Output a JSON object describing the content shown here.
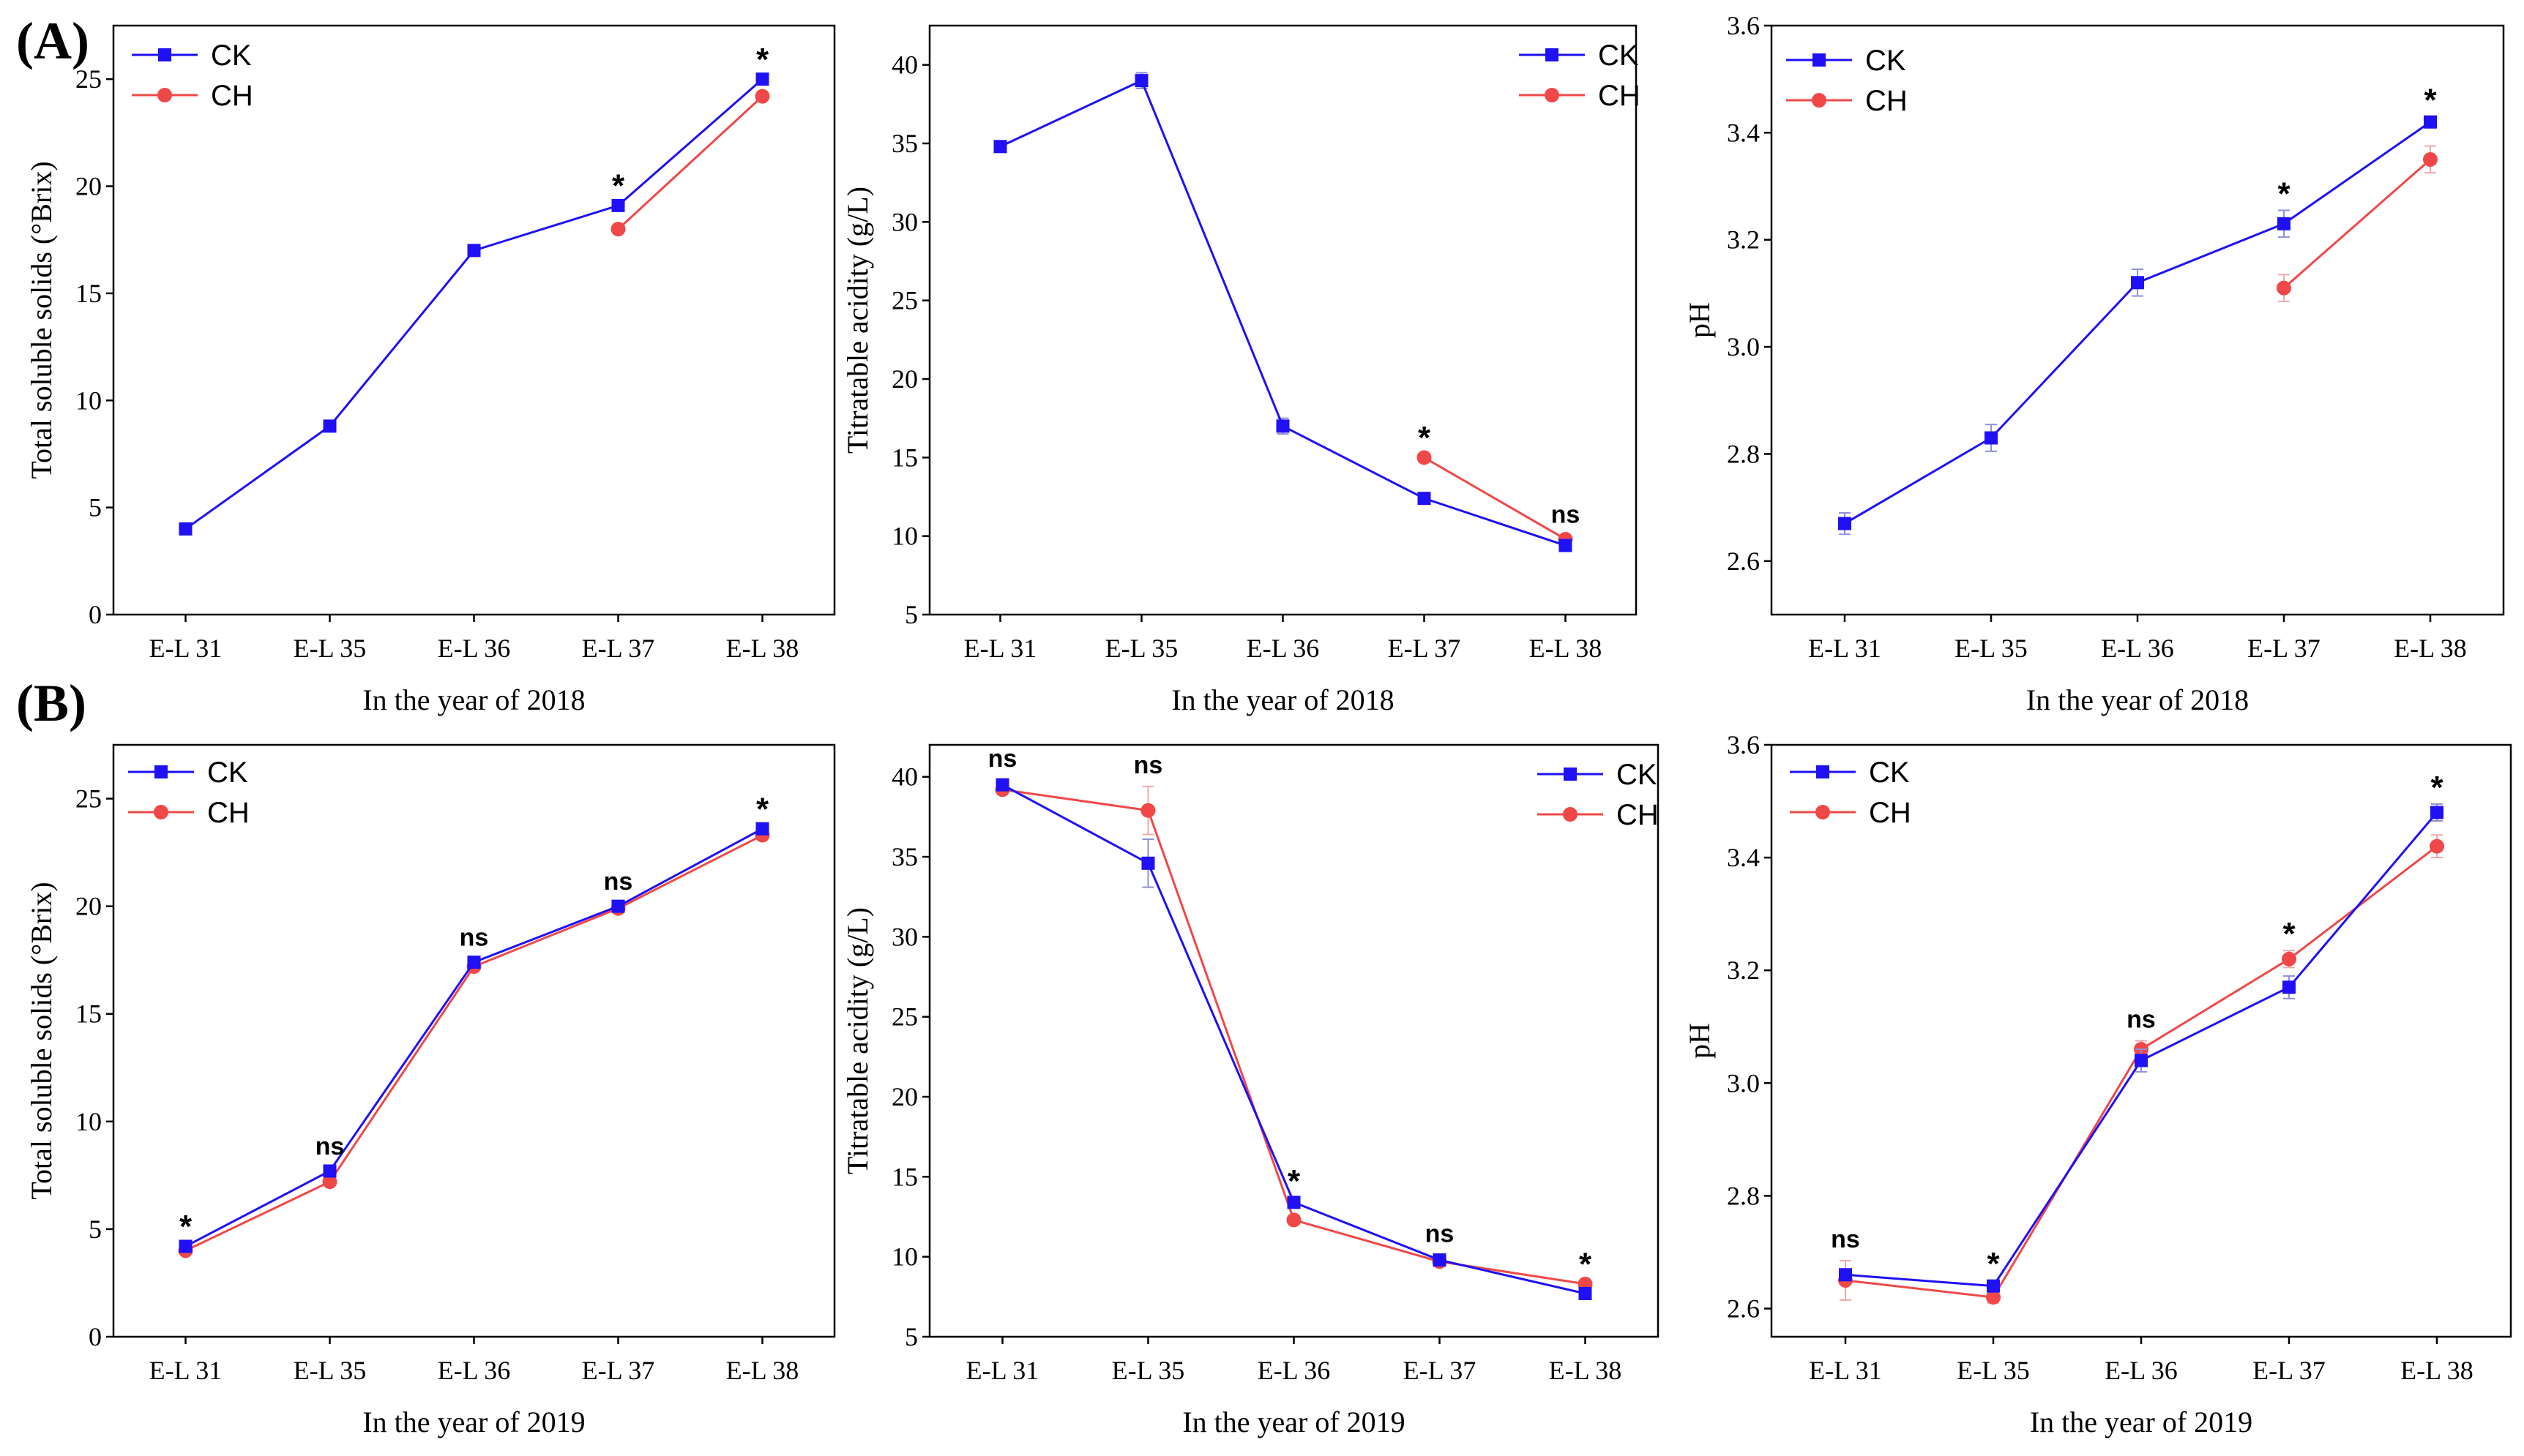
{
  "panel_labels": [
    "(A)",
    "(B)"
  ],
  "legend": [
    "CK",
    "CH"
  ],
  "colors": {
    "CK": "#1f10f5",
    "CH": "#f04848",
    "error_CK": "#8f8fd8",
    "error_CH": "#f0a8a8"
  },
  "chart_data": [
    {
      "type": "line",
      "title": "",
      "panel": "A",
      "xlabel": "In the year of 2018",
      "ylabel": "Total soluble solids (°Brix)",
      "categories": [
        "E-L 31",
        "E-L 35",
        "E-L 36",
        "E-L 37",
        "E-L 38"
      ],
      "ylim": [
        0,
        27.5
      ],
      "yticks": [
        0,
        5,
        10,
        15,
        20,
        25
      ],
      "ytick_labels": [
        "0",
        "5",
        "10",
        "15",
        "20",
        "25"
      ],
      "legend_position": "top-left",
      "series": [
        {
          "name": "CK",
          "values": [
            4.0,
            8.8,
            17.0,
            19.1,
            25.0
          ],
          "errors": [
            0.1,
            0.1,
            0.1,
            0.15,
            0.15
          ]
        },
        {
          "name": "CH",
          "values": [
            null,
            null,
            null,
            18.0,
            24.2
          ],
          "errors": [
            null,
            null,
            null,
            0.15,
            0.15
          ]
        }
      ],
      "annotations": [
        "",
        "",
        "",
        "*",
        "*"
      ]
    },
    {
      "type": "line",
      "title": "",
      "panel": "A",
      "xlabel": "In the year of 2018",
      "ylabel": "Titratable acidity (g/L)",
      "categories": [
        "E-L 31",
        "E-L 35",
        "E-L 36",
        "E-L 37",
        "E-L 38"
      ],
      "ylim": [
        5,
        42.5
      ],
      "yticks": [
        5,
        10,
        15,
        20,
        25,
        30,
        35,
        40
      ],
      "ytick_labels": [
        "5",
        "10",
        "15",
        "20",
        "25",
        "30",
        "35",
        "40"
      ],
      "legend_position": "top-right",
      "series": [
        {
          "name": "CK",
          "values": [
            34.8,
            39.0,
            17.0,
            12.4,
            9.4
          ],
          "errors": [
            0.2,
            0.5,
            0.5,
            0.2,
            0.2
          ]
        },
        {
          "name": "CH",
          "values": [
            null,
            null,
            null,
            15.0,
            9.8
          ],
          "errors": [
            null,
            null,
            null,
            0.2,
            0.2
          ]
        }
      ],
      "annotations": [
        "",
        "",
        "",
        "*",
        "ns"
      ]
    },
    {
      "type": "line",
      "title": "",
      "panel": "A",
      "xlabel": "In the year of 2018",
      "ylabel": "pH",
      "categories": [
        "E-L 31",
        "E-L 35",
        "E-L 36",
        "E-L 37",
        "E-L 38"
      ],
      "ylim": [
        2.5,
        3.6
      ],
      "yticks": [
        2.6,
        2.8,
        3.0,
        3.2,
        3.4,
        3.6
      ],
      "ytick_labels": [
        "2.6",
        "2.8",
        "3.0",
        "3.2",
        "3.4",
        "3.6"
      ],
      "legend_position": "top-left",
      "series": [
        {
          "name": "CK",
          "values": [
            2.67,
            2.83,
            3.12,
            3.23,
            3.42
          ],
          "errors": [
            0.02,
            0.025,
            0.025,
            0.025,
            0.01
          ]
        },
        {
          "name": "CH",
          "values": [
            null,
            null,
            null,
            3.11,
            3.35
          ],
          "errors": [
            null,
            null,
            null,
            0.025,
            0.025
          ]
        }
      ],
      "annotations": [
        "",
        "",
        "",
        "*",
        "*"
      ]
    },
    {
      "type": "line",
      "title": "",
      "panel": "B",
      "xlabel": "In the year of 2019",
      "ylabel": "Total soluble solids (°Brix)",
      "categories": [
        "E-L 31",
        "E-L 35",
        "E-L 36",
        "E-L 37",
        "E-L 38"
      ],
      "ylim": [
        0,
        27.5
      ],
      "yticks": [
        0,
        5,
        10,
        15,
        20,
        25
      ],
      "ytick_labels": [
        "0",
        "5",
        "10",
        "15",
        "20",
        "25"
      ],
      "legend_position": "top-left",
      "series": [
        {
          "name": "CK",
          "values": [
            4.2,
            7.7,
            17.4,
            20.0,
            23.6
          ],
          "errors": [
            0.15,
            0.15,
            0.15,
            0.15,
            0.15
          ]
        },
        {
          "name": "CH",
          "values": [
            4.0,
            7.2,
            17.2,
            19.9,
            23.3
          ],
          "errors": [
            0.15,
            0.15,
            0.15,
            0.15,
            0.15
          ]
        }
      ],
      "annotations": [
        "*",
        "ns",
        "ns",
        "ns",
        "*"
      ]
    },
    {
      "type": "line",
      "title": "",
      "panel": "B",
      "xlabel": "In the year of 2019",
      "ylabel": "Titratable acidity (g/L)",
      "categories": [
        "E-L 31",
        "E-L 35",
        "E-L 36",
        "E-L 37",
        "E-L 38"
      ],
      "ylim": [
        5,
        42
      ],
      "yticks": [
        5,
        10,
        15,
        20,
        25,
        30,
        35,
        40
      ],
      "ytick_labels": [
        "5",
        "10",
        "15",
        "20",
        "25",
        "30",
        "35",
        "40"
      ],
      "legend_position": "top-right",
      "series": [
        {
          "name": "CK",
          "values": [
            39.5,
            34.6,
            13.4,
            9.8,
            7.7
          ],
          "errors": [
            0.3,
            1.5,
            0.3,
            0.3,
            0.2
          ]
        },
        {
          "name": "CH",
          "values": [
            39.2,
            37.9,
            12.3,
            9.7,
            8.3
          ],
          "errors": [
            0.3,
            1.5,
            0.3,
            0.3,
            0.2
          ]
        }
      ],
      "annotations": [
        "ns",
        "ns",
        "*",
        "ns",
        "*"
      ]
    },
    {
      "type": "line",
      "title": "",
      "panel": "B",
      "xlabel": "In the year of 2019",
      "ylabel": "pH",
      "categories": [
        "E-L 31",
        "E-L 35",
        "E-L 36",
        "E-L 37",
        "E-L 38"
      ],
      "ylim": [
        2.55,
        3.6
      ],
      "yticks": [
        2.6,
        2.8,
        3.0,
        3.2,
        3.4,
        3.6
      ],
      "ytick_labels": [
        "2.6",
        "2.8",
        "3.0",
        "3.2",
        "3.4",
        "3.6"
      ],
      "legend_position": "top-left",
      "series": [
        {
          "name": "CK",
          "values": [
            2.66,
            2.64,
            3.04,
            3.17,
            3.48
          ],
          "errors": [
            0.01,
            0.01,
            0.02,
            0.02,
            0.015
          ]
        },
        {
          "name": "CH",
          "values": [
            2.65,
            2.62,
            3.06,
            3.22,
            3.42
          ],
          "errors": [
            0.035,
            0.01,
            0.015,
            0.015,
            0.02
          ]
        }
      ],
      "annotations": [
        "ns",
        "*",
        "ns",
        "*",
        "*"
      ]
    }
  ]
}
